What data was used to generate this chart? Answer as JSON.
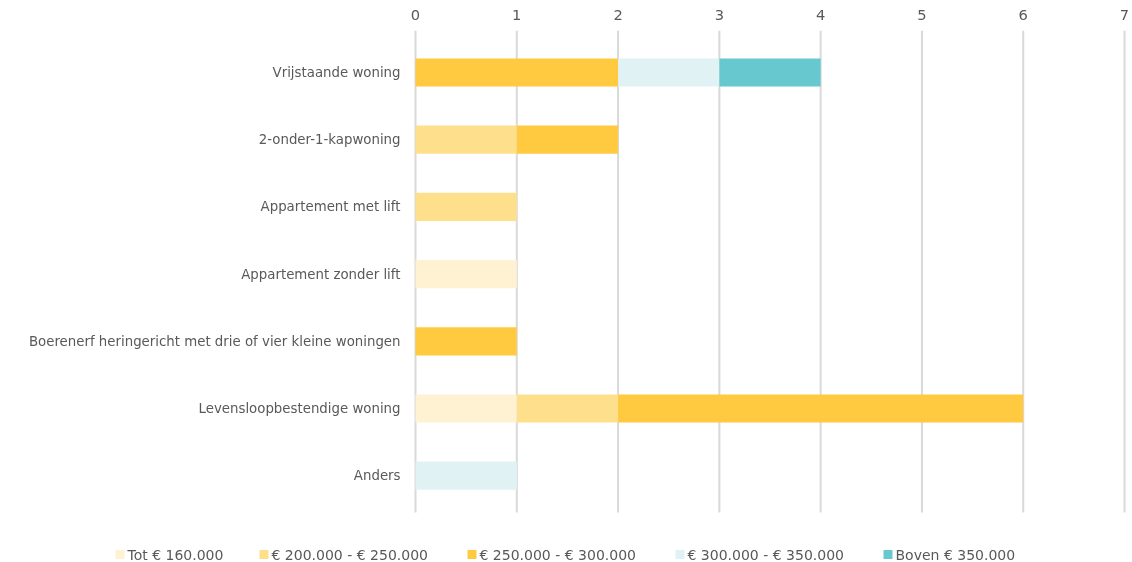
{
  "chart_data": {
    "type": "bar",
    "orientation": "horizontal",
    "stacked": true,
    "categories": [
      "Vrijstaande woning",
      "2-onder-1-kapwoning",
      "Appartement met lift",
      "Appartement zonder lift",
      "Boerenerf heringericht met drie of vier kleine woningen",
      "Levensloopbestendige woning",
      "Anders"
    ],
    "series": [
      {
        "name": "Tot € 160.000",
        "color": "#fff2d3",
        "values": [
          null,
          null,
          null,
          1,
          null,
          1,
          null
        ]
      },
      {
        "name": "€ 200.000 - € 250.000",
        "color": "#fedf8c",
        "values": [
          null,
          1,
          1,
          null,
          null,
          1,
          null
        ]
      },
      {
        "name": "€ 250.000 - € 300.000",
        "color": "#ffca3f",
        "values": [
          2,
          1,
          null,
          null,
          1,
          4,
          null
        ]
      },
      {
        "name": "€ 300.000 - € 350.000",
        "color": "#e1f2f5",
        "values": [
          1,
          null,
          null,
          null,
          null,
          null,
          1
        ]
      },
      {
        "name": "Boven € 350.000",
        "color": "#67c9cf",
        "values": [
          1,
          null,
          null,
          null,
          null,
          null,
          null
        ]
      }
    ],
    "xlim": [
      0,
      7
    ],
    "xticks": [
      0,
      1,
      2,
      3,
      4,
      5,
      6,
      7
    ],
    "grid": "x",
    "legend": "bottom"
  }
}
